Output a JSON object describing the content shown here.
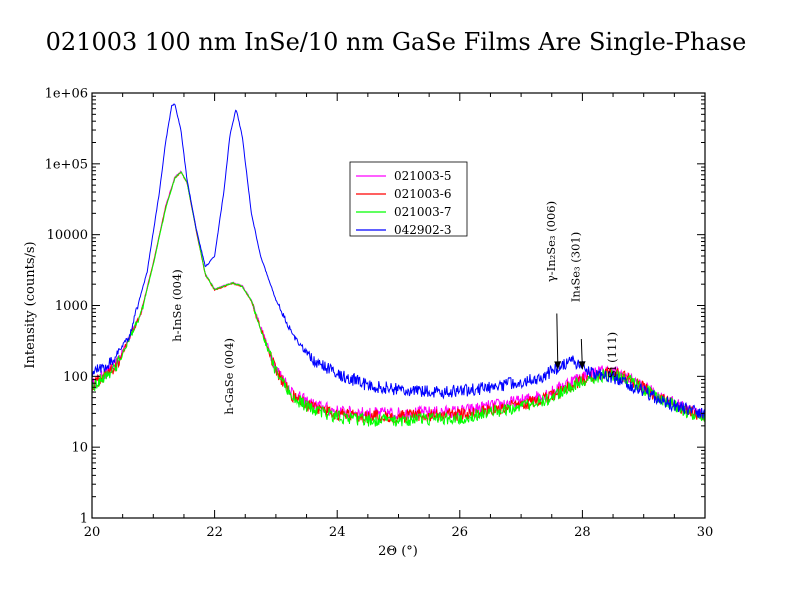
{
  "chart_data": {
    "type": "line",
    "title": "021003 100 nm InSe/10 nm GaSe Films Are Single-Phase",
    "xlabel": "2Θ (°)",
    "ylabel": "Intensity (counts/s)",
    "xlim": [
      20,
      30
    ],
    "ylim": [
      1,
      1000000
    ],
    "yscale": "log",
    "grid": false,
    "legend_position": "upper-center",
    "x_ticks": [
      {
        "value": 20,
        "label": "20"
      },
      {
        "value": 22,
        "label": "22"
      },
      {
        "value": 24,
        "label": "24"
      },
      {
        "value": 26,
        "label": "26"
      },
      {
        "value": 28,
        "label": "28"
      },
      {
        "value": 30,
        "label": "30"
      }
    ],
    "y_ticks": [
      {
        "value": 1,
        "label": "1"
      },
      {
        "value": 10,
        "label": "10"
      },
      {
        "value": 100,
        "label": "100"
      },
      {
        "value": 1000,
        "label": "1000"
      },
      {
        "value": 10000,
        "label": "10000"
      },
      {
        "value": 100000,
        "label": "1e+05"
      },
      {
        "value": 1000000,
        "label": "1e+06"
      }
    ],
    "series": [
      {
        "name": "021003-5",
        "color": "#ff00ff",
        "x": [
          20.0,
          20.4,
          20.8,
          21.0,
          21.2,
          21.35,
          21.45,
          21.55,
          21.7,
          21.85,
          22.0,
          22.15,
          22.3,
          22.45,
          22.6,
          22.75,
          23.0,
          23.3,
          23.6,
          24.0,
          24.5,
          25.0,
          25.5,
          26.0,
          26.5,
          27.0,
          27.5,
          27.8,
          28.0,
          28.2,
          28.4,
          28.6,
          28.8,
          29.0,
          29.3,
          29.6,
          30.0
        ],
        "y": [
          75,
          150,
          800,
          4000,
          25000,
          65000,
          78000,
          55000,
          12000,
          2800,
          1700,
          1900,
          2100,
          1900,
          1200,
          500,
          130,
          55,
          40,
          32,
          30,
          30,
          31,
          32,
          38,
          45,
          60,
          85,
          100,
          115,
          120,
          110,
          90,
          70,
          50,
          38,
          28
        ]
      },
      {
        "name": "021003-6",
        "color": "#ff0000",
        "x": [
          20.0,
          20.4,
          20.8,
          21.0,
          21.2,
          21.35,
          21.45,
          21.55,
          21.7,
          21.85,
          22.0,
          22.15,
          22.3,
          22.45,
          22.6,
          22.75,
          23.0,
          23.3,
          23.6,
          24.0,
          24.5,
          25.0,
          25.5,
          26.0,
          26.5,
          27.0,
          27.5,
          27.8,
          28.0,
          28.2,
          28.4,
          28.6,
          28.8,
          29.0,
          29.3,
          29.6,
          30.0
        ],
        "y": [
          72,
          145,
          780,
          3900,
          24000,
          63000,
          76000,
          54000,
          11500,
          2700,
          1650,
          1850,
          2050,
          1850,
          1150,
          480,
          120,
          50,
          36,
          29,
          27,
          27,
          28,
          29,
          33,
          40,
          52,
          72,
          88,
          100,
          110,
          104,
          88,
          68,
          48,
          36,
          26
        ]
      },
      {
        "name": "021003-7",
        "color": "#00ff00",
        "x": [
          20.0,
          20.4,
          20.8,
          21.0,
          21.2,
          21.35,
          21.45,
          21.55,
          21.7,
          21.85,
          22.0,
          22.15,
          22.3,
          22.45,
          22.6,
          22.75,
          23.0,
          23.3,
          23.6,
          24.0,
          24.5,
          25.0,
          25.5,
          26.0,
          26.5,
          27.0,
          27.5,
          27.8,
          28.0,
          28.2,
          28.4,
          28.6,
          28.8,
          29.0,
          29.3,
          29.6,
          30.0
        ],
        "y": [
          70,
          140,
          760,
          3800,
          23000,
          62000,
          77000,
          55000,
          11800,
          2750,
          1680,
          1880,
          2080,
          1870,
          1170,
          470,
          115,
          48,
          34,
          27,
          24,
          24,
          25,
          26,
          31,
          38,
          50,
          70,
          86,
          98,
          105,
          100,
          85,
          66,
          47,
          35,
          25
        ]
      },
      {
        "name": "042902-3",
        "color": "#0000ff",
        "x": [
          20.0,
          20.3,
          20.6,
          20.9,
          21.1,
          21.2,
          21.3,
          21.35,
          21.45,
          21.55,
          21.7,
          21.85,
          22.0,
          22.15,
          22.25,
          22.35,
          22.45,
          22.6,
          22.75,
          23.0,
          23.3,
          23.6,
          24.0,
          24.5,
          25.0,
          25.5,
          26.0,
          26.5,
          27.0,
          27.3,
          27.6,
          27.8,
          27.95,
          28.1,
          28.3,
          28.5,
          28.8,
          29.0,
          29.3,
          29.6,
          30.0
        ],
        "y": [
          110,
          160,
          350,
          3000,
          40000,
          200000,
          650000,
          700000,
          300000,
          60000,
          12000,
          3500,
          5000,
          40000,
          250000,
          600000,
          250000,
          20000,
          5000,
          1200,
          350,
          170,
          110,
          75,
          65,
          60,
          62,
          70,
          85,
          95,
          130,
          165,
          150,
          120,
          105,
          95,
          75,
          60,
          45,
          36,
          30
        ]
      }
    ],
    "annotations": [
      {
        "text": "h-InSe (004)",
        "x": 21.45,
        "y": 1000
      },
      {
        "text": "h-GaSe (004)",
        "x": 22.3,
        "y": 100
      },
      {
        "text": "γ-In₂Se₃ (006)",
        "x": 27.55,
        "y": 8000,
        "arrow_to": [
          27.6,
          110
        ]
      },
      {
        "text": "In₄Se₃ (301)",
        "x": 27.95,
        "y": 3500,
        "arrow_to": [
          28.0,
          110
        ]
      },
      {
        "text": "Si (111)",
        "x": 28.55,
        "y": 200
      }
    ]
  }
}
